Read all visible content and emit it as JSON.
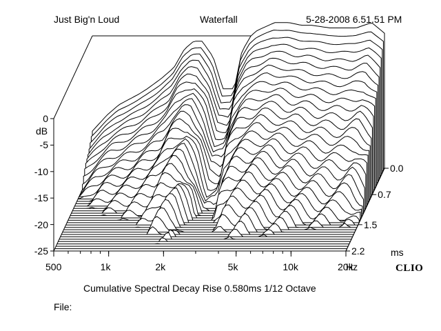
{
  "header": {
    "left": "Just Big'n Loud",
    "center": "Waterfall",
    "right": "5-28-2008 6.51.51 PM"
  },
  "footer": {
    "caption": "Cumulative Spectral Decay   Rise 0.580ms   1/12 Octave",
    "file_label": "File:",
    "brand": "CLIO"
  },
  "chart_data": {
    "type": "waterfall",
    "title": "Waterfall",
    "subtitle": "Cumulative Spectral Decay   Rise 0.580ms   1/12 Octave",
    "x_axis": {
      "scale": "log",
      "range": [
        500,
        20000
      ],
      "unit": "Hz",
      "tick_labels": [
        "500",
        "1k",
        "2k",
        "5k",
        "10k",
        "20k"
      ],
      "tick_values": [
        500,
        1000,
        2000,
        5000,
        10000,
        20000
      ]
    },
    "y_axis": {
      "label": "dB",
      "range": [
        -25,
        0
      ],
      "tick_labels": [
        "0",
        "-5",
        "-10",
        "-15",
        "-20",
        "-25"
      ],
      "tick_values": [
        0,
        -5,
        -10,
        -15,
        -20,
        -25
      ]
    },
    "z_axis": {
      "unit": "ms",
      "range": [
        0.0,
        2.2
      ],
      "tick_labels": [
        "0.0",
        "0.7",
        "1.5",
        "2.2"
      ],
      "tick_values": [
        0.0,
        0.7,
        1.5,
        2.2
      ]
    },
    "slices": 36,
    "grid": false,
    "colors": {
      "line": "#000000",
      "fill": "#ffffff",
      "floor": "#000000"
    },
    "initial_response": [
      {
        "f": 500,
        "db": -18
      },
      {
        "f": 600,
        "db": -15
      },
      {
        "f": 700,
        "db": -13
      },
      {
        "f": 900,
        "db": -11
      },
      {
        "f": 1000,
        "db": -10
      },
      {
        "f": 1200,
        "db": -8
      },
      {
        "f": 1400,
        "db": -6
      },
      {
        "f": 1600,
        "db": -2.5
      },
      {
        "f": 1800,
        "db": -1
      },
      {
        "f": 2000,
        "db": -1
      },
      {
        "f": 2300,
        "db": -4
      },
      {
        "f": 2600,
        "db": -10
      },
      {
        "f": 3000,
        "db": -10
      },
      {
        "f": 3300,
        "db": -3
      },
      {
        "f": 3700,
        "db": 0
      },
      {
        "f": 4000,
        "db": 1
      },
      {
        "f": 5000,
        "db": 2.5
      },
      {
        "f": 6000,
        "db": 2.5
      },
      {
        "f": 7000,
        "db": 2
      },
      {
        "f": 8000,
        "db": 2
      },
      {
        "f": 10000,
        "db": 1.5
      },
      {
        "f": 12000,
        "db": 1.5
      },
      {
        "f": 14000,
        "db": 1.5
      },
      {
        "f": 17000,
        "db": 2.5
      },
      {
        "f": 20000,
        "db": 0.5
      }
    ]
  }
}
